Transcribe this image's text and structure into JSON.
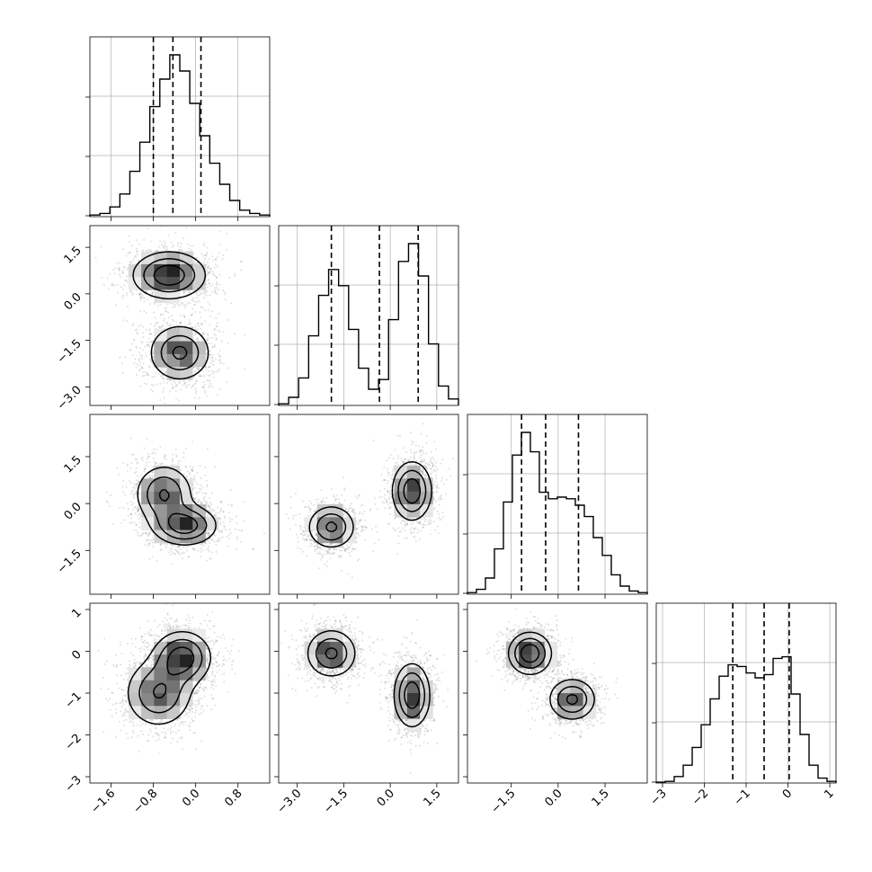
{
  "chart_data": {
    "type": "corner",
    "title": "",
    "parameters": [
      {
        "index": 0,
        "range": [
          -2.0,
          1.4
        ],
        "ticks": [
          -1.6,
          -0.8,
          0.0,
          0.8
        ],
        "tick_labels": [
          "−1.6",
          "−0.8",
          "0.0",
          "0.8"
        ],
        "quantiles": [
          -0.8,
          -0.43,
          0.1
        ],
        "hist": [
          0.01,
          0.02,
          0.06,
          0.14,
          0.28,
          0.46,
          0.68,
          0.85,
          1.0,
          0.9,
          0.7,
          0.5,
          0.33,
          0.2,
          0.1,
          0.04,
          0.02,
          0.01
        ]
      },
      {
        "index": 1,
        "range": [
          -3.6,
          2.2
        ],
        "ticks": [
          -3.0,
          -1.5,
          0.0,
          1.5
        ],
        "tick_labels": [
          "−3.0",
          "−1.5",
          "0.0",
          "1.5"
        ],
        "quantiles": [
          -1.9,
          -0.35,
          0.9
        ],
        "hist": [
          0.01,
          0.05,
          0.17,
          0.43,
          0.68,
          0.84,
          0.74,
          0.47,
          0.23,
          0.1,
          0.16,
          0.53,
          0.89,
          1.0,
          0.8,
          0.38,
          0.12,
          0.04
        ]
      },
      {
        "index": 2,
        "range": [
          -2.9,
          2.85
        ],
        "ticks": [
          -1.5,
          0.0,
          1.5
        ],
        "tick_labels": [
          "−1.5",
          "0.0",
          "1.5"
        ],
        "quantiles": [
          -1.17,
          -0.4,
          0.65
        ],
        "hist": [
          0.01,
          0.03,
          0.1,
          0.28,
          0.57,
          0.86,
          1.0,
          0.88,
          0.63,
          0.59,
          0.6,
          0.59,
          0.55,
          0.48,
          0.35,
          0.24,
          0.12,
          0.05,
          0.02,
          0.01
        ]
      },
      {
        "index": 3,
        "range": [
          -3.15,
          1.15
        ],
        "ticks": [
          -3,
          -2,
          -1,
          0,
          1
        ],
        "tick_labels": [
          "−3",
          "−2",
          "−1",
          "0",
          "1"
        ],
        "quantiles": [
          -1.32,
          -0.57,
          0.03
        ],
        "hist": [
          0.005,
          0.01,
          0.04,
          0.11,
          0.22,
          0.36,
          0.52,
          0.66,
          0.73,
          0.72,
          0.68,
          0.65,
          0.67,
          0.77,
          0.78,
          0.55,
          0.3,
          0.11,
          0.03,
          0.01
        ]
      }
    ],
    "pairs": [
      {
        "row": 1,
        "col": 0,
        "modes": [
          {
            "x": -0.5,
            "y": 0.6,
            "sx": 0.38,
            "sy": 0.42,
            "w": 0.55
          },
          {
            "x": -0.3,
            "y": -1.9,
            "sx": 0.32,
            "sy": 0.5,
            "w": 0.45
          }
        ]
      },
      {
        "row": 2,
        "col": 0,
        "modes": [
          {
            "x": -0.2,
            "y": -0.7,
            "sx": 0.33,
            "sy": 0.35,
            "w": 0.55
          },
          {
            "x": -0.6,
            "y": 0.3,
            "sx": 0.3,
            "sy": 0.52,
            "w": 0.45
          }
        ]
      },
      {
        "row": 2,
        "col": 1,
        "modes": [
          {
            "x": -1.9,
            "y": -0.75,
            "sx": 0.42,
            "sy": 0.38,
            "w": 0.45
          },
          {
            "x": 0.7,
            "y": 0.4,
            "sx": 0.35,
            "sy": 0.52,
            "w": 0.55
          }
        ]
      },
      {
        "row": 3,
        "col": 0,
        "modes": [
          {
            "x": -0.25,
            "y": -0.15,
            "sx": 0.3,
            "sy": 0.35,
            "w": 0.55
          },
          {
            "x": -0.7,
            "y": -1.0,
            "sx": 0.35,
            "sy": 0.45,
            "w": 0.45
          }
        ]
      },
      {
        "row": 3,
        "col": 1,
        "modes": [
          {
            "x": -1.9,
            "y": -0.05,
            "sx": 0.45,
            "sy": 0.32,
            "w": 0.45
          },
          {
            "x": 0.7,
            "y": -1.05,
            "sx": 0.32,
            "sy": 0.42,
            "w": 0.55
          }
        ]
      },
      {
        "row": 3,
        "col": 2,
        "modes": [
          {
            "x": -0.9,
            "y": -0.05,
            "sx": 0.38,
            "sy": 0.28,
            "w": 0.55
          },
          {
            "x": 0.45,
            "y": -1.15,
            "sx": 0.42,
            "sy": 0.28,
            "w": 0.45
          }
        ]
      }
    ],
    "contour_levels": [
      0.75,
      0.45,
      0.2
    ],
    "grid": true,
    "legend": "none"
  }
}
